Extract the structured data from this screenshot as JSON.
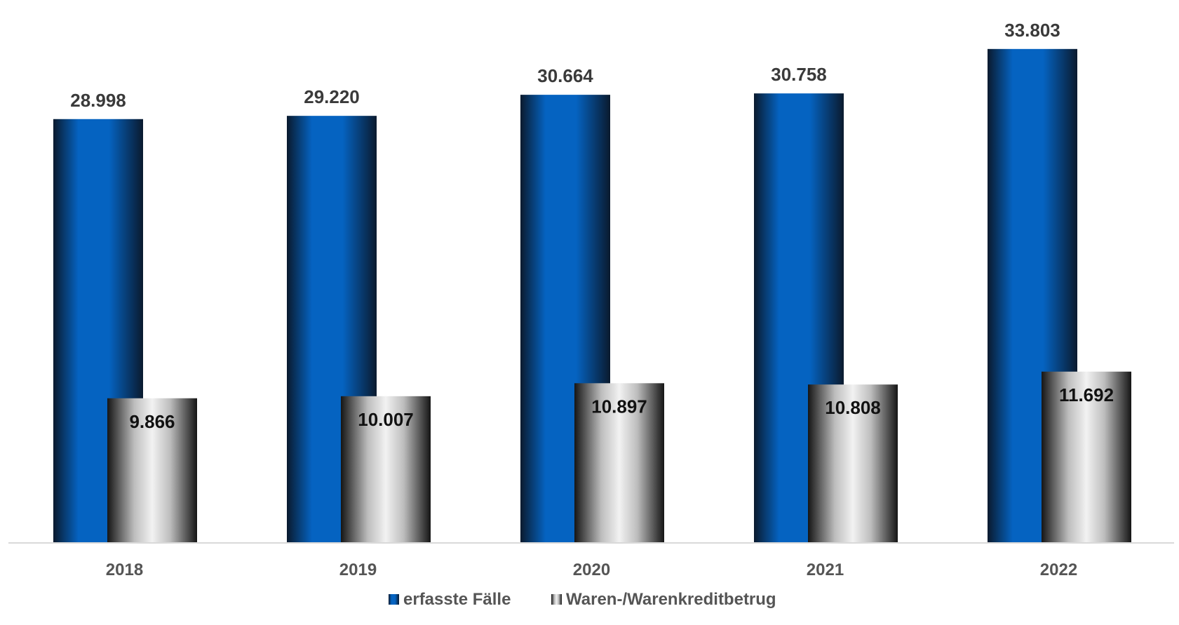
{
  "colors": {
    "series1_base": "#0563c1",
    "series1_dark": "#0a1a2e",
    "series2_light": "#f2f2f2",
    "series2_dark": "#151515",
    "axis_line": "#d9d9d9",
    "label_text": "#555555"
  },
  "chart_data": {
    "type": "bar",
    "categories": [
      "2018",
      "2019",
      "2020",
      "2021",
      "2022"
    ],
    "series": [
      {
        "name": "erfasste Fälle",
        "values": [
          28998,
          29220,
          30664,
          30758,
          33803
        ],
        "labels": [
          "28.998",
          "29.220",
          "30.664",
          "30.758",
          "33.803"
        ]
      },
      {
        "name": "Waren-/Warenkreditbetrug",
        "values": [
          9866,
          10007,
          10897,
          10808,
          11692
        ],
        "labels": [
          "9.866",
          "10.007",
          "10.897",
          "10.808",
          "11.692"
        ]
      }
    ],
    "ylim": [
      0,
      34900
    ],
    "grid": false,
    "legend": "bottom-center",
    "title": "",
    "xlabel": "",
    "ylabel": ""
  }
}
